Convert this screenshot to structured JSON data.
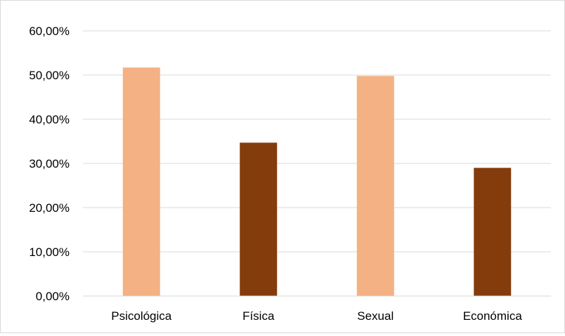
{
  "chart_data": {
    "type": "bar",
    "title": "",
    "xlabel": "",
    "ylabel": "",
    "categories": [
      "Psicológica",
      "Física",
      "Sexual",
      "Económica"
    ],
    "values": [
      51.7,
      34.7,
      49.8,
      29.0
    ],
    "value_format": "percent_2dec_comma",
    "ylim": [
      0,
      60
    ],
    "y_ticks": [
      0,
      10,
      20,
      30,
      40,
      50,
      60
    ],
    "y_tick_labels": [
      "0,00%",
      "10,00%",
      "20,00%",
      "30,00%",
      "40,00%",
      "50,00%",
      "60,00%"
    ],
    "bar_colors": [
      "#F4B183",
      "#843C0C",
      "#F4B183",
      "#843C0C"
    ],
    "gridlines": true,
    "grid_color": "#d9d9d9",
    "legend": "none"
  }
}
